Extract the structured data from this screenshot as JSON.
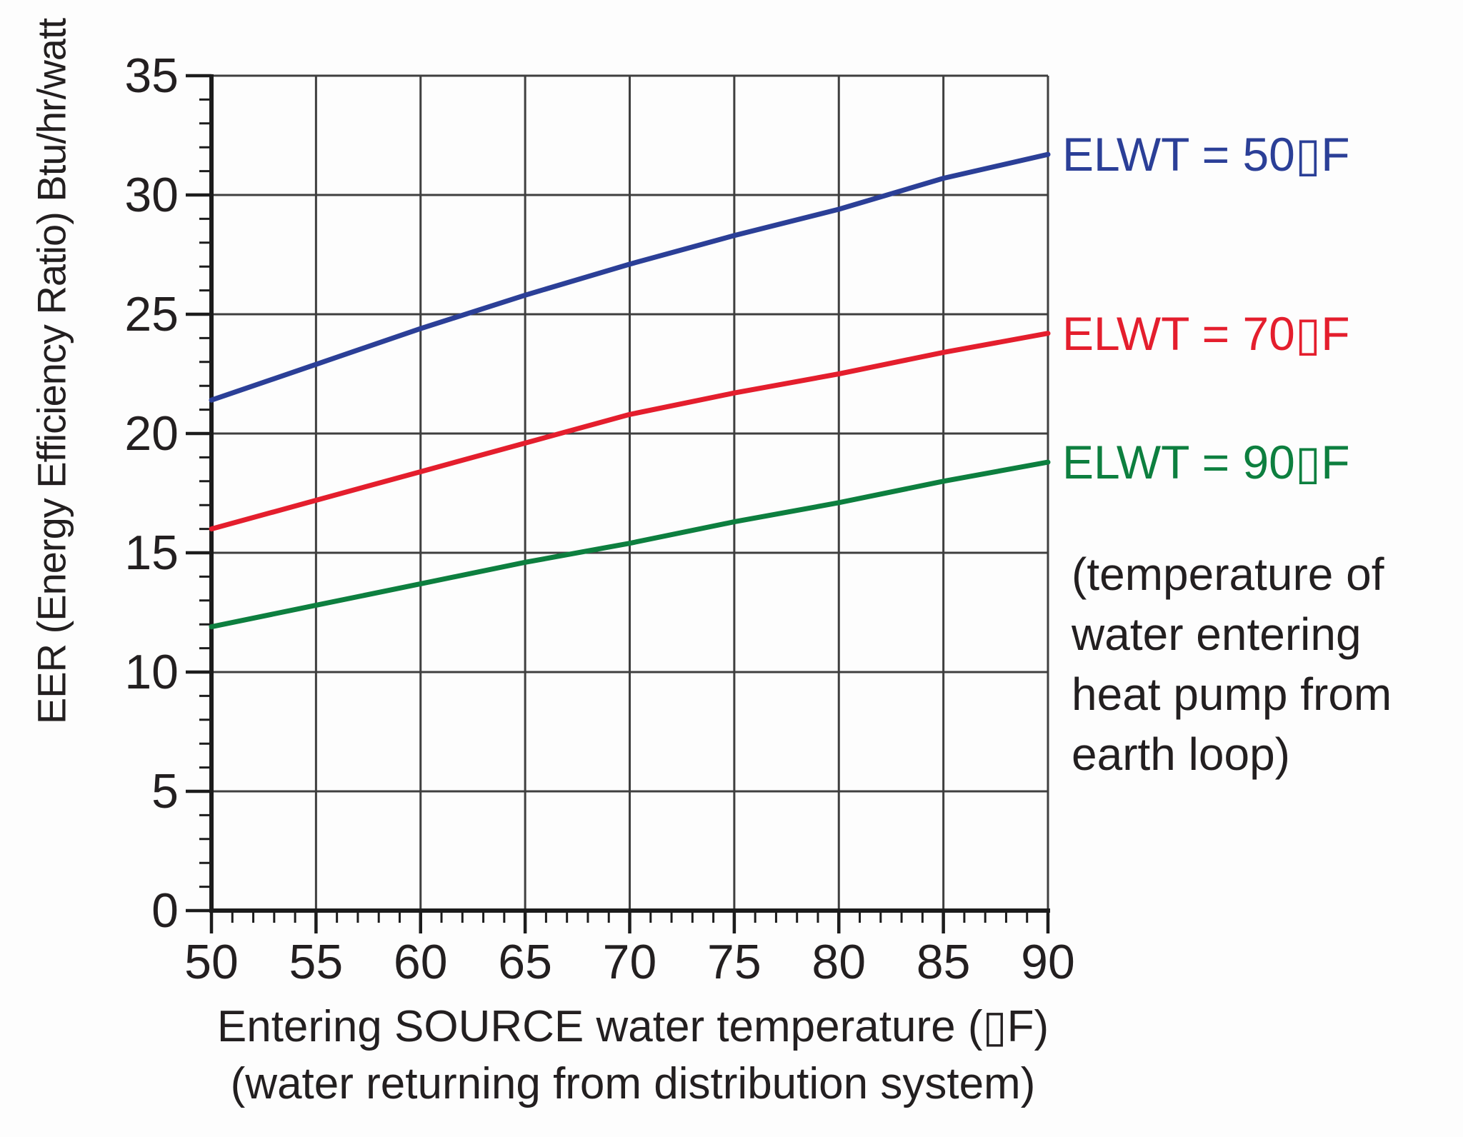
{
  "page": {
    "background": "#fdfdfd",
    "text_color": "#231f20"
  },
  "chart_data": {
    "type": "line",
    "title": "",
    "ylabel": "EER (Energy Efficiency Ratio) Btu/hr/watt",
    "x_axis_title": [
      "Entering SOURCE water temperature (▯F)",
      "(water returning from distribution system)"
    ],
    "annotation_lines": [
      "(temperature of",
      "water entering",
      "heat pump from",
      "earth loop)"
    ],
    "x": [
      50,
      55,
      60,
      65,
      70,
      75,
      80,
      85,
      90
    ],
    "xlim": [
      50,
      90
    ],
    "ylim": [
      0,
      35
    ],
    "x_major_ticks": [
      50,
      55,
      60,
      65,
      70,
      75,
      80,
      85,
      90
    ],
    "y_major_ticks": [
      0,
      5,
      10,
      15,
      20,
      25,
      30,
      35
    ],
    "minor_tick_step": 1,
    "grid": true,
    "grid_color": "#3f3f3f",
    "axis_color": "#1c1c1c",
    "legend_position": "right-of-line-ends",
    "series": [
      {
        "name": "ELWT = 50▯F",
        "color": "#2b3f97",
        "values": [
          21.4,
          22.9,
          24.4,
          25.8,
          27.1,
          28.3,
          29.4,
          30.7,
          31.7
        ]
      },
      {
        "name": "ELWT = 70▯F",
        "color": "#e41e2d",
        "values": [
          16.0,
          17.2,
          18.4,
          19.6,
          20.8,
          21.7,
          22.5,
          23.4,
          24.2
        ]
      },
      {
        "name": "ELWT = 90▯F",
        "color": "#0d7f3f",
        "values": [
          11.9,
          12.8,
          13.7,
          14.6,
          15.4,
          16.3,
          17.1,
          18.0,
          18.8
        ]
      }
    ]
  }
}
